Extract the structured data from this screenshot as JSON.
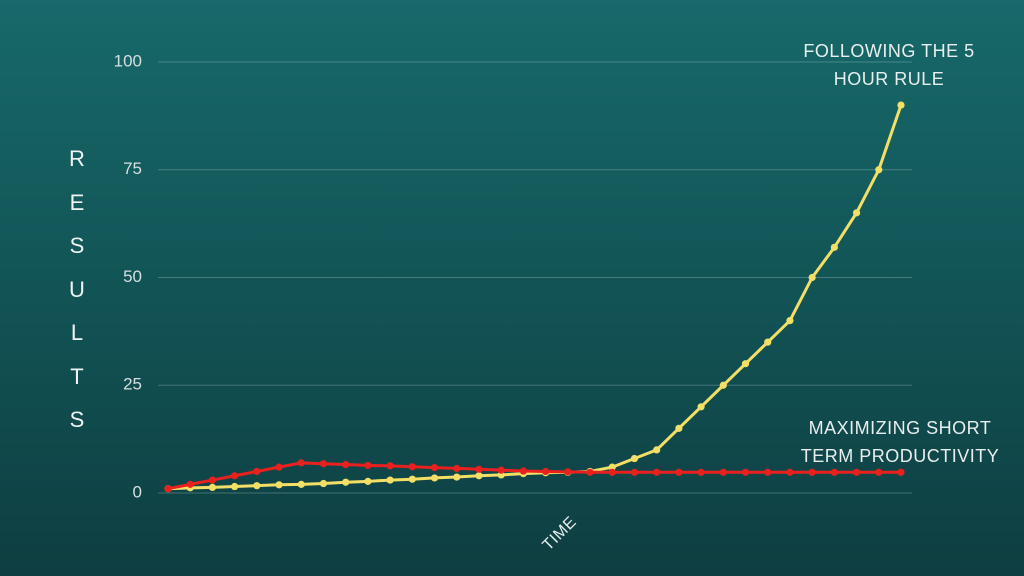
{
  "chart_data": {
    "type": "line",
    "ylabel": "RESULTS",
    "xlabel": "TIME",
    "categories": [
      null,
      null,
      null,
      null,
      null,
      null,
      null,
      null,
      null,
      null,
      null,
      null,
      null,
      null,
      null,
      null,
      null,
      null,
      null,
      null,
      null,
      null,
      null,
      null,
      null,
      null,
      null,
      null,
      null,
      null,
      null,
      null,
      null,
      null
    ],
    "series": [
      {
        "color": "#f4df66",
        "values": [
          1,
          1.2,
          1.3,
          1.5,
          1.7,
          1.9,
          2,
          2.2,
          2.5,
          2.7,
          3,
          3.2,
          3.5,
          3.7,
          4,
          4.2,
          4.5,
          4.7,
          4.8,
          5,
          6,
          8,
          10,
          15,
          20,
          25,
          30,
          35,
          40,
          50,
          57,
          65,
          75,
          90
        ]
      },
      {
        "color": "#e8211f",
        "values": [
          1,
          2,
          3,
          4,
          5,
          6,
          7,
          6.8,
          6.6,
          6.4,
          6.3,
          6.1,
          5.9,
          5.7,
          5.5,
          5.3,
          5.1,
          5,
          4.9,
          4.8,
          4.8,
          4.8,
          4.8,
          4.8,
          4.8,
          4.8,
          4.8,
          4.8,
          4.8,
          4.8,
          4.8,
          4.8,
          4.8,
          4.8
        ]
      }
    ],
    "annotations": [
      {
        "lines": [
          "FOLLOWING THE 5",
          "HOUR RULE"
        ]
      },
      {
        "lines": [
          "MAXIMIZING SHORT",
          "TERM PRODUCTIVITY"
        ]
      }
    ],
    "ylim": [
      0,
      100
    ],
    "yticks": [
      0,
      25,
      50,
      75,
      100
    ],
    "grid": true
  }
}
